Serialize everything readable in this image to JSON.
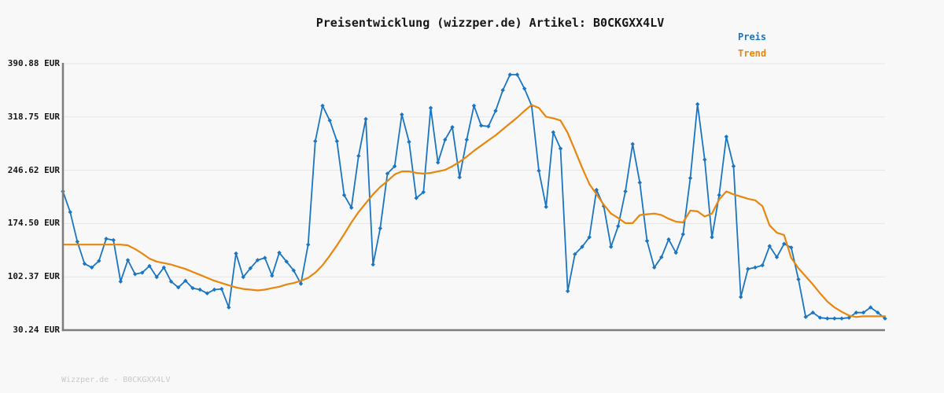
{
  "header": {
    "title": "Preisentwicklung (wizzper.de) Artikel: B0CKGXX4LV"
  },
  "legend": {
    "items": [
      {
        "label": "Preis",
        "color": "#1a75c2"
      },
      {
        "label": "Trend",
        "color": "#e8860d"
      }
    ]
  },
  "watermark": {
    "text": "Wizzper.de - B0CKGXX4LV"
  },
  "colors": {
    "background": "#f8f8f8",
    "grid": "#e6e6e6",
    "axis": "#7d7d7d",
    "text": "#161616",
    "watermark_text": "#c9c9c9",
    "price_blue": "#1a75c2",
    "trend_orange": "#e8860d"
  },
  "chart_data": {
    "type": "line",
    "title": "Preisentwicklung (wizzper.de) Artikel: B0CKGXX4LV",
    "xlabel": "",
    "ylabel": "",
    "currency": "EUR",
    "x_tick_labels": [],
    "grid": "horizontal",
    "legend_position": "top-right",
    "ylim": [
      30.24,
      390.88
    ],
    "y_ticks": [
      {
        "value": 390.88,
        "label": "390.88 EUR"
      },
      {
        "value": 318.75,
        "label": "318.75 EUR"
      },
      {
        "value": 246.62,
        "label": "246.62 EUR"
      },
      {
        "value": 174.5,
        "label": "174.50 EUR"
      },
      {
        "value": 102.37,
        "label": "102.37 EUR"
      },
      {
        "value": 30.24,
        "label": "30.24 EUR"
      }
    ],
    "series": [
      {
        "name": "Preis",
        "color": "#1a75c2",
        "markers": "diamond",
        "values": [
          218,
          190,
          150,
          120,
          115,
          124,
          154,
          152,
          96,
          125,
          106,
          108,
          117,
          102,
          115,
          96,
          88,
          97,
          87,
          85,
          80,
          85,
          86,
          61,
          134,
          102,
          114,
          125,
          128,
          104,
          135,
          123,
          111,
          93,
          146,
          286,
          334,
          314,
          286,
          213,
          196,
          266,
          316,
          119,
          168,
          242,
          252,
          322,
          285,
          209,
          217,
          331,
          257,
          288,
          305,
          237,
          288,
          334,
          307,
          306,
          327,
          355,
          376,
          376,
          357,
          334,
          246,
          197,
          298,
          276,
          83,
          133,
          143,
          156,
          220,
          198,
          143,
          171,
          218,
          282,
          230,
          151,
          115,
          129,
          153,
          135,
          160,
          236,
          336,
          261,
          156,
          213,
          292,
          252,
          75,
          113,
          115,
          118,
          144,
          129,
          147,
          142,
          99,
          48,
          54,
          47,
          46,
          46,
          46,
          47,
          54,
          54,
          61,
          54,
          46
        ]
      },
      {
        "name": "Trend",
        "color": "#e8860d",
        "markers": "none",
        "values": [
          146,
          146,
          146,
          146,
          146,
          146,
          146,
          146,
          146,
          145,
          140,
          134,
          127,
          123,
          121,
          119,
          116,
          113,
          109,
          105,
          101,
          97,
          94,
          91,
          88,
          86,
          85,
          84,
          85,
          87,
          89,
          92,
          94,
          97,
          101,
          108,
          118,
          131,
          145,
          160,
          176,
          190,
          202,
          214,
          224,
          232,
          241,
          245,
          245,
          243,
          242,
          243,
          245,
          247,
          252,
          258,
          265,
          273,
          280,
          287,
          294,
          302,
          310,
          318,
          327,
          335,
          331,
          319,
          317,
          314,
          297,
          274,
          250,
          228,
          214,
          200,
          188,
          182,
          175,
          175,
          186,
          187,
          188,
          186,
          181,
          177,
          176,
          192,
          191,
          184,
          188,
          207,
          218,
          214,
          211,
          208,
          206,
          198,
          172,
          162,
          159,
          128,
          114,
          103,
          92,
          80,
          69,
          61,
          55,
          50,
          48,
          49,
          49,
          49,
          49
        ]
      }
    ]
  }
}
